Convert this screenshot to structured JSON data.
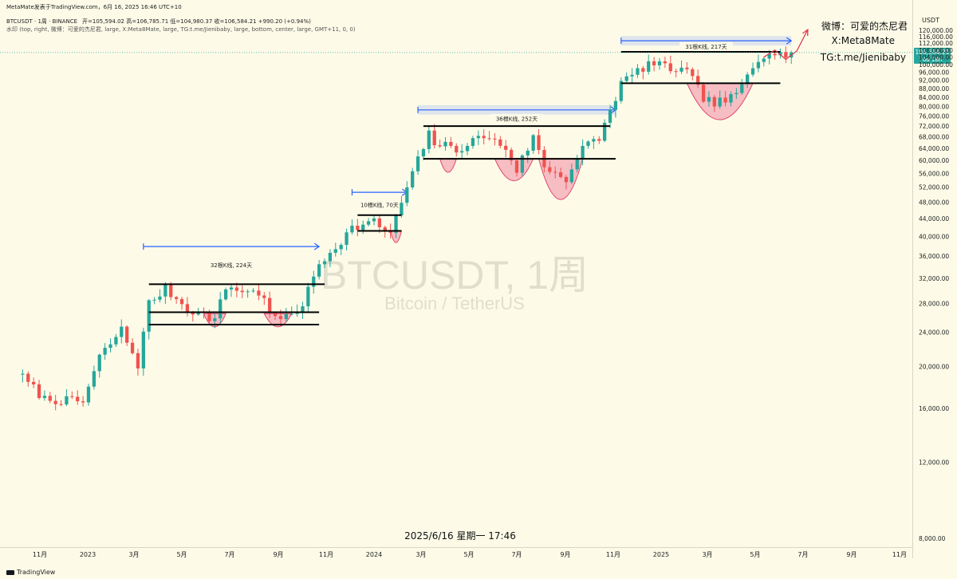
{
  "header": {
    "published_by": "MetaMate发表于TradingView.com，6月 16, 2025 16:46 UTC+10",
    "symbol": "BTCUSDT · 1周 · BINANCE",
    "ohlc": "开=105,594.02  高=106,785.71  低=104,980.37  收=106,584.21  +990.20 (+0.94%)",
    "watermark_settings": "水印 (top, right, 微博：可爱的杰尼君, large, X:Meta8Mate, large, TG:t.me/Jienibaby, large, bottom, center, large, GMT+11, 0, 0)"
  },
  "social": {
    "weibo": "微博：可爱的杰尼君",
    "x": "X:Meta8Mate",
    "tg": "TG:t.me/Jienibaby"
  },
  "footer": {
    "datetime": "2025/6/16 星期一 17:46",
    "logo": "TradingView"
  },
  "watermark": {
    "main": "BTCUSDT, 1周",
    "sub": "Bitcoin / TetherUS"
  },
  "colors": {
    "background": "#fdfbe8",
    "up": "#26a69a",
    "down": "#ef5350",
    "arrow": "#2962ff",
    "pattern_fill": "#f2a3b3",
    "pattern_stroke": "#e0446a",
    "level_line": "#000000",
    "projection": "#e23a4e"
  },
  "chart_data": {
    "type": "candlestick",
    "interval": "1周",
    "currency": "USDT",
    "y_axis": {
      "scale": "log",
      "ticks": [
        8000,
        12000,
        16000,
        20000,
        24000,
        28000,
        32000,
        36000,
        40000,
        44000,
        48000,
        52000,
        56000,
        60000,
        64000,
        68000,
        72000,
        76000,
        80000,
        84000,
        88000,
        92000,
        96000,
        100000,
        104000,
        108000,
        112000,
        116000,
        120000
      ],
      "tick_labels": [
        "8,000.00",
        "12,000.00",
        "16,000.00",
        "20,000.00",
        "24,000.00",
        "28,000.00",
        "32,000.00",
        "36,000.00",
        "40,000.00",
        "44,000.00",
        "48,000.00",
        "52,000.00",
        "56,000.00",
        "60,000.00",
        "64,000.00",
        "68,000.00",
        "72,000.00",
        "76,000.00",
        "80,000.00",
        "84,000.00",
        "88,000.00",
        "92,000.00",
        "96,000.00",
        "100,000.00",
        "104,000.00",
        "108,000.00",
        "112,000.00",
        "116,000.00",
        "120,000.00"
      ]
    },
    "x_axis": {
      "ticks": [
        {
          "date": "2022-11-01",
          "label": "11月"
        },
        {
          "date": "2023-01-01",
          "label": "2023"
        },
        {
          "date": "2023-03-01",
          "label": "3月"
        },
        {
          "date": "2023-05-01",
          "label": "5月"
        },
        {
          "date": "2023-07-01",
          "label": "7月"
        },
        {
          "date": "2023-09-01",
          "label": "9月"
        },
        {
          "date": "2023-11-01",
          "label": "11月"
        },
        {
          "date": "2024-01-01",
          "label": "2024"
        },
        {
          "date": "2024-03-01",
          "label": "3月"
        },
        {
          "date": "2024-05-01",
          "label": "5月"
        },
        {
          "date": "2024-07-01",
          "label": "7月"
        },
        {
          "date": "2024-09-01",
          "label": "9月"
        },
        {
          "date": "2024-11-01",
          "label": "11月"
        },
        {
          "date": "2025-01-01",
          "label": "2025"
        },
        {
          "date": "2025-03-01",
          "label": "3月"
        },
        {
          "date": "2025-05-01",
          "label": "5月"
        },
        {
          "date": "2025-07-01",
          "label": "7月"
        },
        {
          "date": "2025-09-01",
          "label": "9月"
        },
        {
          "date": "2025-11-01",
          "label": "11月"
        }
      ]
    },
    "price_label": {
      "value": 106584.21,
      "text": "106,584.21",
      "countdown": "6d 18h"
    },
    "anchors": [
      {
        "date": "2022-10-03",
        "price": 19400
      },
      {
        "date": "2022-11-07",
        "price": 16800
      },
      {
        "date": "2022-12-26",
        "price": 16550
      },
      {
        "date": "2023-01-16",
        "price": 21000
      },
      {
        "date": "2023-02-13",
        "price": 24300
      },
      {
        "date": "2023-03-06",
        "price": 20200
      },
      {
        "date": "2023-03-20",
        "price": 28000
      },
      {
        "date": "2023-04-10",
        "price": 30300
      },
      {
        "date": "2023-05-08",
        "price": 27200
      },
      {
        "date": "2023-06-12",
        "price": 25700
      },
      {
        "date": "2023-06-26",
        "price": 30500
      },
      {
        "date": "2023-07-17",
        "price": 30000
      },
      {
        "date": "2023-08-14",
        "price": 29300
      },
      {
        "date": "2023-08-21",
        "price": 26100
      },
      {
        "date": "2023-09-11",
        "price": 25800
      },
      {
        "date": "2023-10-02",
        "price": 27900
      },
      {
        "date": "2023-10-23",
        "price": 34500
      },
      {
        "date": "2023-12-04",
        "price": 41800
      },
      {
        "date": "2024-01-01",
        "price": 43200
      },
      {
        "date": "2024-01-22",
        "price": 40500
      },
      {
        "date": "2024-02-12",
        "price": 52000
      },
      {
        "date": "2024-03-11",
        "price": 69000
      },
      {
        "date": "2024-03-18",
        "price": 66000
      },
      {
        "date": "2024-04-15",
        "price": 63500
      },
      {
        "date": "2024-05-20",
        "price": 68500
      },
      {
        "date": "2024-06-17",
        "price": 64000
      },
      {
        "date": "2024-07-01",
        "price": 57000
      },
      {
        "date": "2024-07-22",
        "price": 68000
      },
      {
        "date": "2024-08-05",
        "price": 58000
      },
      {
        "date": "2024-09-02",
        "price": 54500
      },
      {
        "date": "2024-09-23",
        "price": 64000
      },
      {
        "date": "2024-10-14",
        "price": 67500
      },
      {
        "date": "2024-11-11",
        "price": 90500
      },
      {
        "date": "2024-12-16",
        "price": 100500
      },
      {
        "date": "2025-01-13",
        "price": 98000
      },
      {
        "date": "2025-02-03",
        "price": 96000
      },
      {
        "date": "2025-02-24",
        "price": 84000
      },
      {
        "date": "2025-03-10",
        "price": 81000
      },
      {
        "date": "2025-04-07",
        "price": 84500
      },
      {
        "date": "2025-04-21",
        "price": 94500
      },
      {
        "date": "2025-05-05",
        "price": 103000
      },
      {
        "date": "2025-05-19",
        "price": 108500
      },
      {
        "date": "2025-06-02",
        "price": 105500
      },
      {
        "date": "2025-06-16",
        "price": 106584
      }
    ],
    "levels": [
      {
        "price": 31000,
        "from": "2023-03-20",
        "to": "2023-10-30"
      },
      {
        "price": 26700,
        "from": "2023-03-20",
        "to": "2023-10-23"
      },
      {
        "price": 25000,
        "from": "2023-03-20",
        "to": "2023-10-23"
      },
      {
        "price": 44800,
        "from": "2023-12-11",
        "to": "2024-02-05"
      },
      {
        "price": 41200,
        "from": "2023-12-11",
        "to": "2024-02-05"
      },
      {
        "price": 72000,
        "from": "2024-03-04",
        "to": "2024-10-28"
      },
      {
        "price": 60500,
        "from": "2024-03-04",
        "to": "2024-11-04"
      },
      {
        "price": 107000,
        "from": "2024-11-11",
        "to": "2025-06-02"
      },
      {
        "price": 90500,
        "from": "2024-11-11",
        "to": "2025-06-02"
      }
    ],
    "ranges": [
      {
        "label": "32根K线, 224天",
        "from": "2023-03-13",
        "to": "2023-10-23",
        "arrow_price": 37900,
        "label_price": 34300
      },
      {
        "label": "10根K线, 70天",
        "from": "2023-12-04",
        "to": "2024-02-12",
        "arrow_price": 50600,
        "label_price": 47300
      },
      {
        "label": "36根K线, 252天",
        "from": "2024-02-26",
        "to": "2024-11-04",
        "arrow_price": 78500,
        "label_price": 74900
      },
      {
        "label": "31根K线, 217天",
        "from": "2024-11-11",
        "to": "2025-06-16",
        "arrow_price": 113500,
        "label_price": 109900
      }
    ],
    "cups": [
      {
        "from": "2023-05-29",
        "to": "2023-06-26",
        "top": 26500,
        "bottom": 24700
      },
      {
        "from": "2023-08-14",
        "to": "2023-09-18",
        "top": 26500,
        "bottom": 24700
      },
      {
        "from": "2024-01-22",
        "to": "2024-02-05",
        "top": 41200,
        "bottom": 38700
      },
      {
        "from": "2024-03-25",
        "to": "2024-04-15",
        "top": 60500,
        "bottom": 56300
      },
      {
        "from": "2024-06-03",
        "to": "2024-07-22",
        "top": 60500,
        "bottom": 53800
      },
      {
        "from": "2024-07-29",
        "to": "2024-09-23",
        "top": 60500,
        "bottom": 48700
      },
      {
        "from": "2025-02-03",
        "to": "2025-04-28",
        "top": 90500,
        "bottom": 74500
      }
    ],
    "projection": [
      {
        "date": "2025-05-12",
        "price": 104000
      },
      {
        "date": "2025-05-26",
        "price": 108000
      },
      {
        "date": "2025-06-09",
        "price": 102800
      },
      {
        "date": "2025-06-23",
        "price": 107500
      },
      {
        "date": "2025-07-07",
        "price": 120500
      }
    ]
  }
}
